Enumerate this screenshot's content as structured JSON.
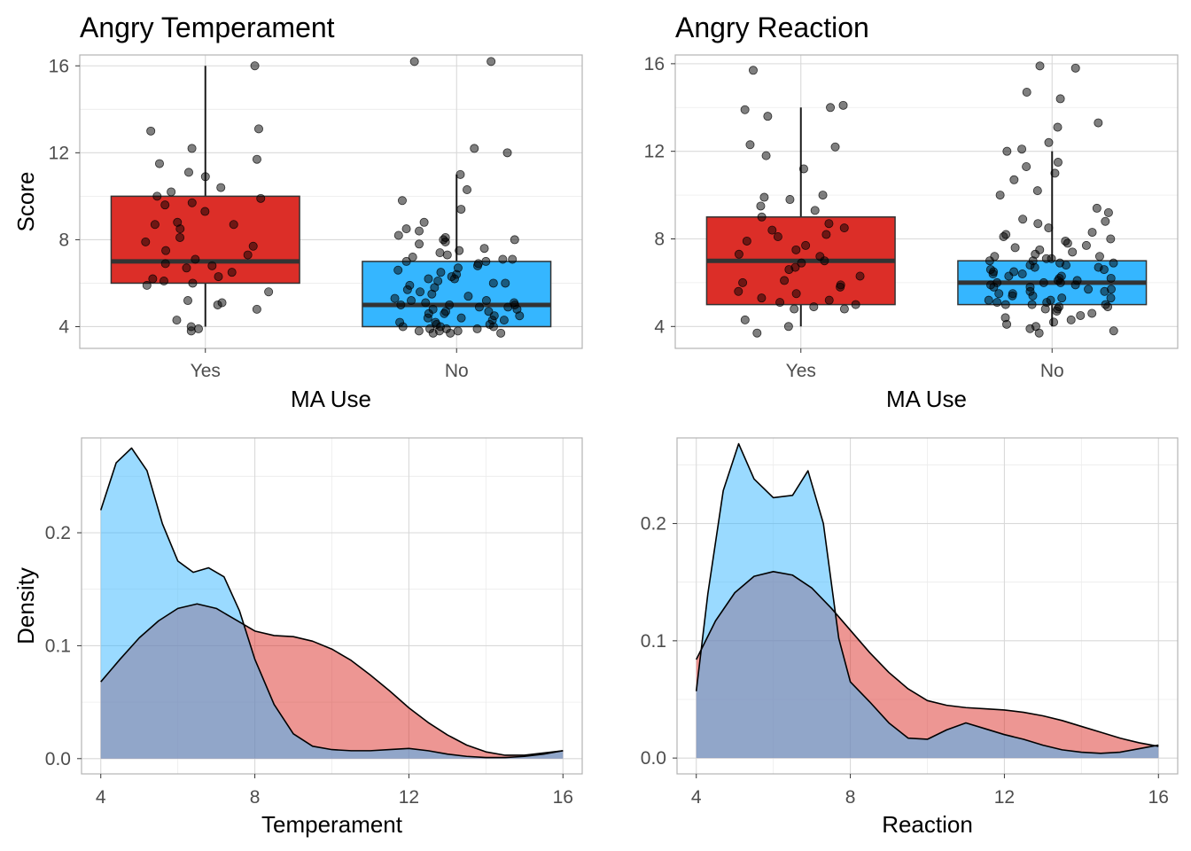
{
  "colors": {
    "yes": "#dc2e28",
    "no": "#35b6ff",
    "density_yes": "#dc2e28",
    "density_no": "#35b6ff"
  },
  "chart_data": [
    {
      "type": "box",
      "title": "Angry Temperament",
      "xlabel": "MA Use",
      "ylabel": "Score",
      "ylim": [
        3,
        16.5
      ],
      "yticks": [
        4,
        8,
        12,
        16
      ],
      "grid": true,
      "categories": [
        "Yes",
        "No"
      ],
      "boxes": [
        {
          "category": "Yes",
          "min": 4,
          "q1": 6,
          "median": 7,
          "q3": 10,
          "max": 16,
          "points": [
            16,
            13.1,
            13,
            12.2,
            11.7,
            11.5,
            11.1,
            10.9,
            10.4,
            10.2,
            10,
            9.9,
            9.7,
            9.6,
            9.3,
            8.8,
            8.7,
            8.7,
            8.5,
            8.1,
            7.9,
            7.7,
            7.5,
            7.3,
            7.1,
            6.9,
            6.8,
            6.7,
            6.5,
            6.3,
            6.2,
            6.1,
            6,
            5.9,
            5.6,
            5.2,
            5.1,
            5,
            4.8,
            4.3,
            4,
            3.9,
            3.8
          ]
        },
        {
          "category": "No",
          "min": 4,
          "q1": 4,
          "median": 5,
          "q3": 7,
          "max": 11,
          "points": [
            16.2,
            16.2,
            12.2,
            12,
            11,
            10.3,
            9.8,
            9.4,
            8.8,
            8.5,
            8.4,
            8.2,
            8.1,
            8,
            8,
            7.9,
            7.8,
            7.6,
            7.5,
            7.4,
            7.3,
            7.2,
            7.1,
            7.1,
            7,
            7,
            6.9,
            6.8,
            6.7,
            6.6,
            6.5,
            6.4,
            6.3,
            6.2,
            6.2,
            6.1,
            6,
            6,
            5.9,
            5.8,
            5.7,
            5.6,
            5.5,
            5.4,
            5.3,
            5.2,
            5.2,
            5.1,
            5.1,
            5,
            5,
            5,
            4.9,
            4.9,
            4.8,
            4.8,
            4.7,
            4.7,
            4.6,
            4.6,
            4.5,
            4.5,
            4.4,
            4.4,
            4.3,
            4.3,
            4.2,
            4.2,
            4.1,
            4.1,
            4,
            4,
            4,
            3.9,
            3.9,
            3.9,
            3.8,
            3.8,
            3.8,
            3.7,
            3.7,
            3.7
          ]
        }
      ]
    },
    {
      "type": "box",
      "title": "Angry Reaction",
      "xlabel": "MA Use",
      "ylabel": "",
      "ylim": [
        3,
        16.4
      ],
      "yticks": [
        4,
        8,
        12,
        16
      ],
      "grid": true,
      "categories": [
        "Yes",
        "No"
      ],
      "boxes": [
        {
          "category": "Yes",
          "min": 4,
          "q1": 5,
          "median": 7,
          "q3": 9,
          "max": 14,
          "points": [
            15.7,
            14.1,
            14,
            13.9,
            13.6,
            12.3,
            12.2,
            11.8,
            11.2,
            10,
            9.9,
            9.8,
            9.5,
            9.3,
            9,
            8.7,
            8.5,
            8.4,
            8.2,
            8.1,
            7.9,
            7.7,
            7.5,
            7.3,
            7.2,
            7,
            6.9,
            6.7,
            6.6,
            6.3,
            6.1,
            6,
            5.9,
            5.8,
            5.6,
            5.5,
            5.3,
            5.2,
            5.1,
            5,
            4.9,
            4.8,
            4.8,
            4.3,
            4,
            3.7
          ]
        },
        {
          "category": "No",
          "min": 4,
          "q1": 5,
          "median": 6,
          "q3": 7,
          "max": 12,
          "points": [
            15.9,
            15.8,
            14.7,
            14.4,
            13.3,
            13.1,
            12.4,
            12.1,
            12,
            11.5,
            11.3,
            11,
            10.7,
            10.2,
            10,
            9.4,
            9.2,
            8.9,
            8.8,
            8.7,
            8.5,
            8.3,
            8.2,
            8.1,
            8,
            7.9,
            7.8,
            7.7,
            7.6,
            7.5,
            7.4,
            7.3,
            7.2,
            7.2,
            7.1,
            7.1,
            7,
            7,
            6.9,
            6.9,
            6.8,
            6.8,
            6.7,
            6.7,
            6.6,
            6.6,
            6.5,
            6.5,
            6.4,
            6.4,
            6.3,
            6.3,
            6.2,
            6.2,
            6.1,
            6.1,
            6,
            6,
            6,
            5.9,
            5.9,
            5.8,
            5.8,
            5.7,
            5.7,
            5.6,
            5.6,
            5.5,
            5.5,
            5.4,
            5.4,
            5.3,
            5.3,
            5.2,
            5.2,
            5.1,
            5.1,
            5,
            5,
            5,
            4.9,
            4.9,
            4.8,
            4.8,
            4.7,
            4.6,
            4.5,
            4.4,
            4.3,
            4.2,
            4.1,
            4,
            3.9,
            3.8,
            3.7
          ]
        }
      ]
    },
    {
      "type": "area",
      "title": "",
      "xlabel": "Temperament",
      "ylabel": "Density",
      "xlim": [
        3.5,
        16.5
      ],
      "ylim": [
        -0.0135,
        0.284
      ],
      "xticks": [
        4,
        8,
        12,
        16
      ],
      "yticks": [
        0.0,
        0.1,
        0.2
      ],
      "ytick_labels": [
        "0.0",
        "0.1",
        "0.2"
      ],
      "grid": true,
      "series": [
        {
          "group": "Yes",
          "x": [
            4,
            4.5,
            5,
            5.5,
            6,
            6.5,
            7,
            7.5,
            8,
            8.5,
            9,
            9.5,
            10,
            10.5,
            11,
            11.5,
            12,
            12.5,
            13,
            13.5,
            14,
            14.5,
            15,
            15.5,
            16
          ],
          "y": [
            0.068,
            0.088,
            0.107,
            0.122,
            0.133,
            0.137,
            0.133,
            0.123,
            0.113,
            0.109,
            0.108,
            0.104,
            0.097,
            0.087,
            0.074,
            0.06,
            0.045,
            0.032,
            0.021,
            0.012,
            0.006,
            0.003,
            0.003,
            0.005,
            0.007
          ]
        },
        {
          "group": "No",
          "x": [
            4,
            4.4,
            4.8,
            5.2,
            5.6,
            6,
            6.4,
            6.8,
            7.2,
            7.6,
            8,
            8.5,
            9,
            9.5,
            10,
            10.5,
            11,
            11.5,
            12,
            12.5,
            13,
            13.5,
            14,
            14.5,
            15,
            15.5,
            16
          ],
          "y": [
            0.22,
            0.262,
            0.275,
            0.255,
            0.208,
            0.175,
            0.165,
            0.169,
            0.161,
            0.131,
            0.088,
            0.048,
            0.022,
            0.011,
            0.008,
            0.007,
            0.007,
            0.008,
            0.009,
            0.007,
            0.004,
            0.002,
            0.001,
            0.001,
            0.002,
            0.004,
            0.007
          ]
        }
      ]
    },
    {
      "type": "area",
      "title": "",
      "xlabel": "Reaction",
      "ylabel": "",
      "xlim": [
        3.5,
        16.5
      ],
      "ylim": [
        -0.0135,
        0.273
      ],
      "xticks": [
        4,
        8,
        12,
        16
      ],
      "yticks": [
        0.0,
        0.1,
        0.2
      ],
      "ytick_labels": [
        "0.0",
        "0.1",
        "0.2"
      ],
      "grid": true,
      "series": [
        {
          "group": "Yes",
          "x": [
            4,
            4.5,
            5,
            5.5,
            6,
            6.5,
            7,
            7.5,
            8,
            8.5,
            9,
            9.5,
            10,
            10.5,
            11,
            11.5,
            12,
            12.5,
            13,
            13.5,
            14,
            14.5,
            15,
            15.5,
            16
          ],
          "y": [
            0.084,
            0.117,
            0.141,
            0.155,
            0.159,
            0.156,
            0.145,
            0.128,
            0.109,
            0.09,
            0.073,
            0.059,
            0.049,
            0.045,
            0.043,
            0.042,
            0.041,
            0.039,
            0.036,
            0.032,
            0.027,
            0.022,
            0.017,
            0.013,
            0.01
          ]
        },
        {
          "group": "No",
          "x": [
            4,
            4.3,
            4.7,
            5.1,
            5.5,
            6,
            6.5,
            6.9,
            7.3,
            7.7,
            8,
            8.5,
            9,
            9.5,
            10,
            10.5,
            11,
            11.5,
            12,
            12.5,
            13,
            13.5,
            14,
            14.5,
            15,
            15.5,
            16
          ],
          "y": [
            0.057,
            0.14,
            0.228,
            0.268,
            0.238,
            0.222,
            0.224,
            0.245,
            0.2,
            0.102,
            0.065,
            0.048,
            0.03,
            0.017,
            0.016,
            0.024,
            0.03,
            0.025,
            0.02,
            0.016,
            0.011,
            0.007,
            0.005,
            0.004,
            0.005,
            0.008,
            0.011
          ]
        }
      ]
    }
  ]
}
